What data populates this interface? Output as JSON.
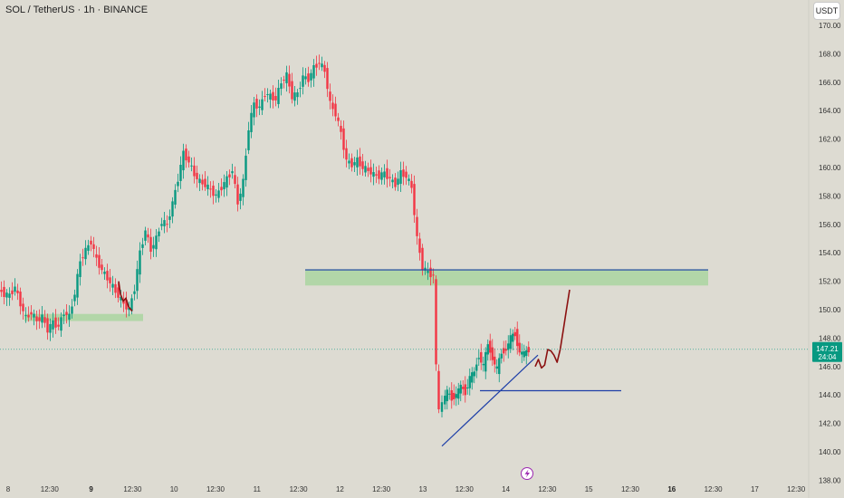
{
  "header": {
    "symbol_title": "SOL / TetherUS · 1h · BINANCE",
    "currency_button": "USDT"
  },
  "price_badge": {
    "price": "147.21",
    "countdown": "24:04",
    "color": "#089981"
  },
  "colors": {
    "background": "#dddbd2",
    "bull": "#089981",
    "bear": "#f23645",
    "zone_fill": "#a7d49e",
    "trendline": "#1e3fa8",
    "drawing": "#8b1010",
    "lightning_icon": "#9c27b0"
  },
  "icons": [
    "lightning-icon"
  ],
  "chart_data": {
    "type": "candlestick",
    "title": "SOL / TetherUS · 1h · BINANCE",
    "ylim": [
      137.5,
      171
    ],
    "y_ticks": [
      138,
      140,
      142,
      144,
      146,
      148,
      150,
      152,
      154,
      156,
      158,
      160,
      162,
      164,
      166,
      168,
      170
    ],
    "x_ticks": [
      {
        "label": "8",
        "bold": false
      },
      {
        "label": "12:30",
        "bold": false
      },
      {
        "label": "9",
        "bold": true
      },
      {
        "label": "12:30",
        "bold": false
      },
      {
        "label": "10",
        "bold": false
      },
      {
        "label": "12:30",
        "bold": false
      },
      {
        "label": "11",
        "bold": false
      },
      {
        "label": "12:30",
        "bold": false
      },
      {
        "label": "12",
        "bold": false
      },
      {
        "label": "12:30",
        "bold": false
      },
      {
        "label": "13",
        "bold": false
      },
      {
        "label": "12:30",
        "bold": false
      },
      {
        "label": "14",
        "bold": false
      },
      {
        "label": "12:30",
        "bold": false
      },
      {
        "label": "15",
        "bold": false
      },
      {
        "label": "12:30",
        "bold": false
      },
      {
        "label": "16",
        "bold": true
      },
      {
        "label": "12:30",
        "bold": false
      },
      {
        "label": "17",
        "bold": false
      },
      {
        "label": "12:30",
        "bold": false
      }
    ],
    "path_points": [
      [
        0,
        151.4
      ],
      [
        6,
        151.1
      ],
      [
        12,
        151.0
      ],
      [
        18,
        151.6
      ],
      [
        24,
        150.4
      ],
      [
        30,
        149.4
      ],
      [
        36,
        149.8
      ],
      [
        42,
        149.2
      ],
      [
        48,
        149.5
      ],
      [
        54,
        148.6
      ],
      [
        60,
        149.1
      ],
      [
        66,
        148.8
      ],
      [
        72,
        149.8
      ],
      [
        78,
        149.5
      ],
      [
        84,
        151.2
      ],
      [
        90,
        153.4
      ],
      [
        96,
        154.2
      ],
      [
        102,
        154.8
      ],
      [
        108,
        153.5
      ],
      [
        114,
        152.8
      ],
      [
        120,
        152.2
      ],
      [
        126,
        151.6
      ],
      [
        132,
        151.0
      ],
      [
        138,
        150.4
      ],
      [
        144,
        150.0
      ],
      [
        150,
        151.5
      ],
      [
        156,
        154.0
      ],
      [
        162,
        155.6
      ],
      [
        168,
        154.2
      ],
      [
        174,
        155.0
      ],
      [
        180,
        156.2
      ],
      [
        186,
        156.0
      ],
      [
        192,
        157.5
      ],
      [
        198,
        159.2
      ],
      [
        204,
        161.0
      ],
      [
        210,
        160.4
      ],
      [
        216,
        159.5
      ],
      [
        222,
        159.0
      ],
      [
        228,
        158.8
      ],
      [
        234,
        158.4
      ],
      [
        240,
        158.0
      ],
      [
        246,
        158.6
      ],
      [
        252,
        159.2
      ],
      [
        258,
        159.8
      ],
      [
        264,
        157.5
      ],
      [
        270,
        159.0
      ],
      [
        276,
        162.8
      ],
      [
        282,
        164.5
      ],
      [
        288,
        164.2
      ],
      [
        294,
        165.2
      ],
      [
        300,
        165.0
      ],
      [
        306,
        164.8
      ],
      [
        312,
        166.0
      ],
      [
        318,
        166.5
      ],
      [
        324,
        165.0
      ],
      [
        330,
        165.2
      ],
      [
        336,
        166.4
      ],
      [
        342,
        166.2
      ],
      [
        348,
        167.0
      ],
      [
        354,
        167.4
      ],
      [
        360,
        166.8
      ],
      [
        366,
        164.5
      ],
      [
        372,
        163.8
      ],
      [
        378,
        162.4
      ],
      [
        384,
        160.5
      ],
      [
        390,
        160.2
      ],
      [
        396,
        160.5
      ],
      [
        402,
        160.0
      ],
      [
        408,
        159.8
      ],
      [
        414,
        159.5
      ],
      [
        420,
        159.4
      ],
      [
        426,
        159.6
      ],
      [
        432,
        159.2
      ],
      [
        438,
        158.8
      ],
      [
        444,
        159.6
      ],
      [
        450,
        159.4
      ],
      [
        456,
        158.6
      ],
      [
        462,
        155.0
      ],
      [
        468,
        153.0
      ],
      [
        474,
        152.6
      ],
      [
        480,
        152.4
      ],
      [
        483,
        146.0
      ],
      [
        486,
        142.8
      ],
      [
        490,
        143.5
      ],
      [
        495,
        144.2
      ],
      [
        500,
        143.8
      ],
      [
        505,
        144.0
      ],
      [
        510,
        144.6
      ],
      [
        515,
        144.2
      ],
      [
        520,
        145.2
      ],
      [
        525,
        145.6
      ],
      [
        530,
        146.8
      ],
      [
        535,
        146.0
      ],
      [
        540,
        147.6
      ],
      [
        545,
        146.6
      ],
      [
        550,
        145.8
      ],
      [
        555,
        147.0
      ],
      [
        560,
        147.2
      ],
      [
        565,
        148.0
      ],
      [
        570,
        148.3
      ],
      [
        575,
        147.0
      ],
      [
        580,
        146.9
      ],
      [
        585,
        147.2
      ]
    ],
    "price_line": 147.21,
    "annotations": {
      "support_zone_left": {
        "y_low": 149.2,
        "y_high": 149.7
      },
      "resistance_zone": {
        "y_low": 151.7,
        "y_high": 152.85
      },
      "resistance_line": 152.8,
      "horizontal_support": 144.3,
      "ascending_trendline": {
        "from": 140.4,
        "to": 146.8
      },
      "projected_path": [
        146.0,
        146.5,
        145.9,
        146.1,
        147.2,
        147.1,
        146.8,
        146.3,
        147.2,
        148.6,
        150.0,
        151.4
      ]
    }
  }
}
